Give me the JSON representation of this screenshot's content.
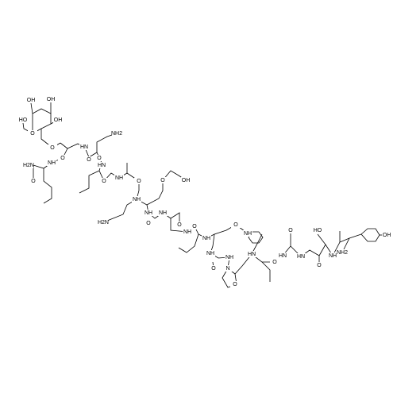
{
  "atoms": [
    "OH",
    "OH",
    "HO",
    "OH",
    "O",
    "O",
    "H2N",
    "O",
    "NH",
    "O",
    "HN",
    "O",
    "NH2",
    "HN",
    "O",
    "NH",
    "O",
    "NH",
    "O",
    "OH",
    "H2N",
    "NH",
    "O",
    "NH",
    "O",
    "NH",
    "NH",
    "O",
    "O",
    "NH",
    "NH",
    "O",
    "NH",
    "N",
    "O",
    "HN",
    "O",
    "HN",
    "O",
    "HN",
    "O",
    "HO",
    "O",
    "NH",
    "NH2",
    "OH"
  ]
}
